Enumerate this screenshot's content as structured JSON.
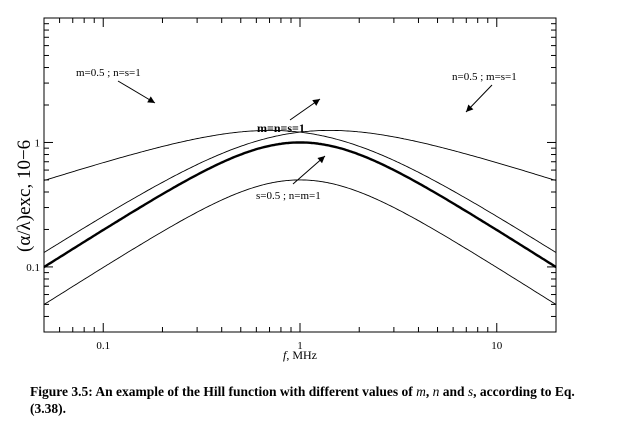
{
  "chart_data": {
    "type": "line",
    "x_scale": "log",
    "y_scale": "log",
    "xlim": [
      0.05,
      20
    ],
    "ylim": [
      0.03,
      10
    ],
    "xlabel_var": "f",
    "xlabel_unit": ", MHz",
    "ylabel": "(α/λ)exc, 10−6",
    "x_ticks": [
      {
        "value": 0.1,
        "label": "0.1"
      },
      {
        "value": 1,
        "label": "1"
      },
      {
        "value": 10,
        "label": "10"
      }
    ],
    "y_ticks": [
      {
        "value": 0.1,
        "label": "0.1"
      },
      {
        "value": 1,
        "label": "1"
      }
    ],
    "series": [
      {
        "name": "m=n=s=1",
        "m": 1,
        "n": 1,
        "s": 1,
        "peak_freq": 1,
        "peak_value": 1,
        "bold": true
      },
      {
        "name": "m=0.5 ; n=s=1",
        "m": 0.5,
        "n": 1,
        "s": 1,
        "peak_freq": 0.707,
        "peak_value": 1.25,
        "bold": false
      },
      {
        "name": "n=0.5 ; m=s=1",
        "m": 1,
        "n": 0.5,
        "s": 1,
        "peak_freq": 1.414,
        "peak_value": 1.25,
        "bold": false
      },
      {
        "name": "s=0.5 ; n=m=1",
        "m": 1,
        "n": 1,
        "s": 0.5,
        "peak_freq": 1,
        "peak_value": 0.5,
        "bold": false
      }
    ],
    "annotations": [
      {
        "text": "m=0.5 ; n=s=1",
        "series": 1
      },
      {
        "text": "n=0.5 ; m=s=1",
        "series": 2
      },
      {
        "text": "m=n=s=1",
        "series": 0
      },
      {
        "text": "s=0.5 ; n=m=1",
        "series": 3
      }
    ]
  },
  "caption": {
    "prefix": "Figure 3.5: An example of the Hill function with different values of ",
    "var_m": "m",
    "sep1": ", ",
    "var_n": "n",
    "sep2": " and ",
    "var_s": "s",
    "suffix": ", according to Eq.(3.38)."
  }
}
